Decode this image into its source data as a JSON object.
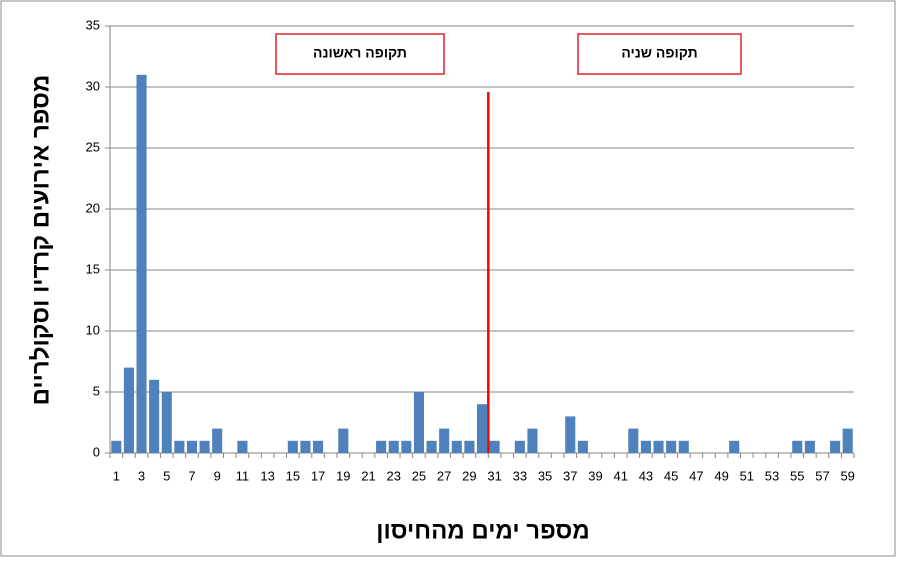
{
  "chart_data": {
    "type": "bar",
    "y_label": "מספר אירועים קרדיו וסקולריים",
    "x_label": "מספר ימים מהחיסון",
    "annotations": [
      "תקופה ראשונה",
      "תקופה שניה"
    ],
    "categories": [
      "1",
      null,
      "3",
      null,
      "5",
      null,
      "7",
      null,
      "9",
      null,
      "11",
      null,
      "13",
      null,
      "15",
      null,
      "17",
      null,
      "19",
      null,
      "21",
      null,
      "23",
      null,
      "25",
      null,
      "27",
      null,
      "29",
      null,
      "31",
      null,
      "33",
      null,
      "35",
      null,
      "37",
      null,
      "39",
      null,
      "41",
      null,
      "43",
      null,
      "45",
      null,
      "47",
      null,
      "49",
      null,
      "51",
      null,
      "53",
      null,
      "55",
      null,
      "57",
      null,
      "59"
    ],
    "values": [
      1,
      7,
      31,
      6,
      5,
      1,
      1,
      1,
      2,
      0,
      1,
      0,
      0,
      0,
      1,
      1,
      1,
      0,
      2,
      0,
      0,
      1,
      1,
      1,
      5,
      1,
      2,
      1,
      1,
      4,
      1,
      0,
      1,
      2,
      0,
      0,
      3,
      1,
      0,
      0,
      0,
      2,
      1,
      1,
      1,
      1,
      0,
      0,
      0,
      1,
      0,
      0,
      0,
      0,
      1,
      1,
      0,
      1,
      2
    ],
    "color": "#4f81bd",
    "ylim": [
      0,
      35
    ],
    "yticks": [
      0,
      5,
      10,
      15,
      20,
      25,
      30,
      35
    ],
    "grid": true
  }
}
